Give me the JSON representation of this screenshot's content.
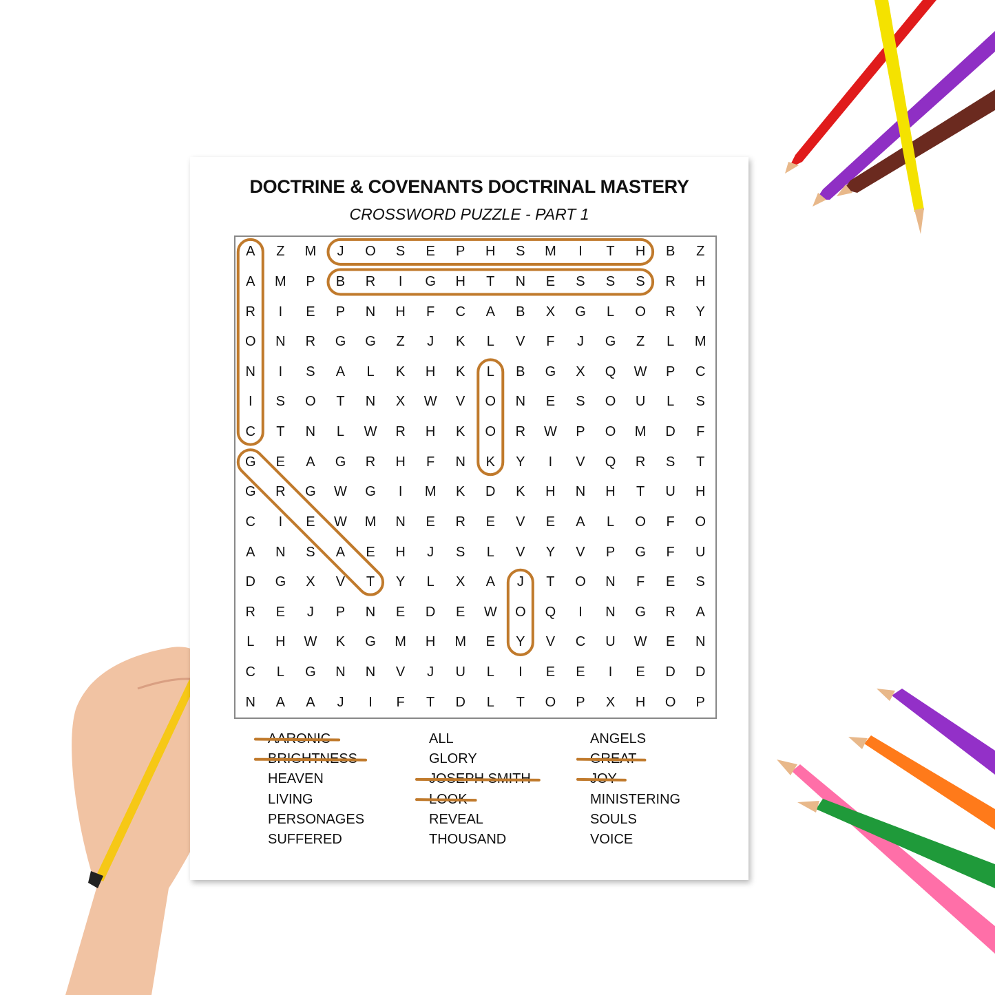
{
  "title": "DOCTRINE & COVENANTS DOCTRINAL MASTERY",
  "subtitle": "CROSSWORD PUZZLE - PART 1",
  "grid": [
    "AZMJOSEPHSMITHBZ",
    "AMPBRIGHTNESSSRH",
    "RIEPNHFCABXGLORY",
    "ONRGGZJKLVFJGZLM",
    "NISALKHKLBGXQWPC",
    "ISOTNXWVONESOULS",
    "CTNLWRHKORWPOMDF",
    "GEAGRHFNKYIVQRST",
    "GRGWGIMKDKHNHTUH",
    "CIEWMNEREVEALOFO",
    "ANSAEHJSLVYVPGFU",
    "DGXVTYLXAJTONFES",
    "REJPNEDEWOQINGRA",
    "LHWKGMHMEYVCUWEN",
    "CLGNNVJULIEEIEDD",
    "NAAJIFTDLTOPXHOP"
  ],
  "word_columns": [
    [
      {
        "word": "AARONIC",
        "found": true
      },
      {
        "word": "BRIGHTNESS",
        "found": true
      },
      {
        "word": "HEAVEN",
        "found": false
      },
      {
        "word": "LIVING",
        "found": false
      },
      {
        "word": "PERSONAGES",
        "found": false
      },
      {
        "word": "SUFFERED",
        "found": false
      }
    ],
    [
      {
        "word": "ALL",
        "found": false
      },
      {
        "word": "GLORY",
        "found": false
      },
      {
        "word": "JOSEPH SMITH",
        "found": true
      },
      {
        "word": "LOOK",
        "found": true
      },
      {
        "word": "REVEAL",
        "found": false
      },
      {
        "word": "THOUSAND",
        "found": false
      }
    ],
    [
      {
        "word": "ANGELS",
        "found": false
      },
      {
        "word": "GREAT",
        "found": true
      },
      {
        "word": "JOY",
        "found": true
      },
      {
        "word": "MINISTERING",
        "found": false
      },
      {
        "word": "SOULS",
        "found": false
      },
      {
        "word": "VOICE",
        "found": false
      }
    ]
  ],
  "colors": {
    "marker": "#c07a2c",
    "text": "#111111",
    "border": "#888888"
  }
}
